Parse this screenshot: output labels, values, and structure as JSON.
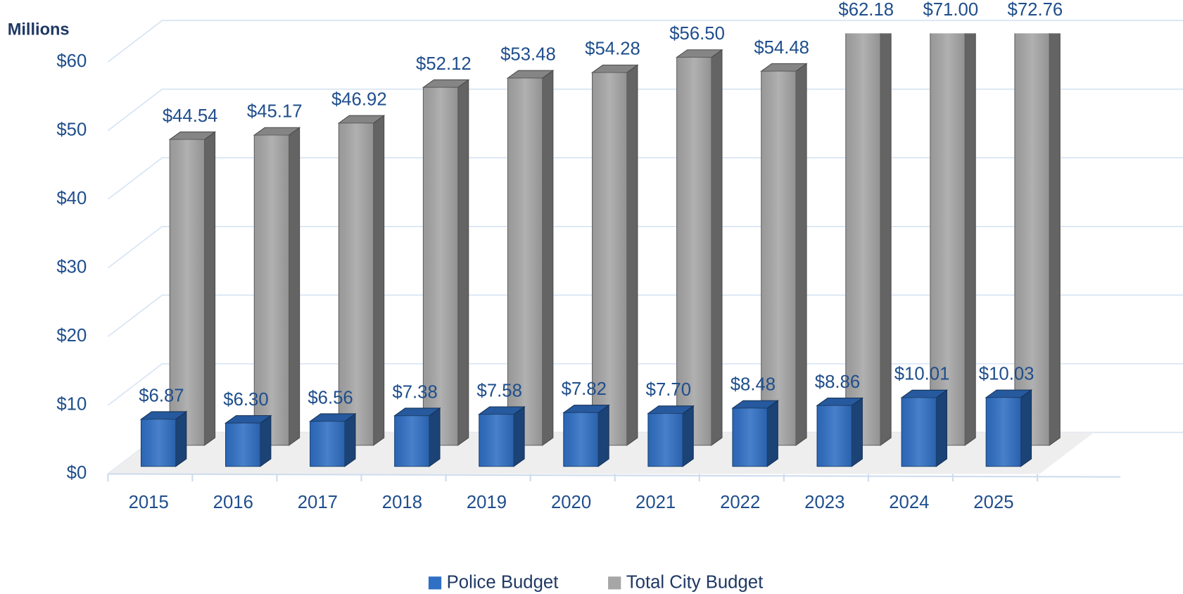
{
  "chart_data": {
    "type": "bar3d",
    "y_axis_title": "Millions",
    "categories": [
      "2015",
      "2016",
      "2017",
      "2018",
      "2019",
      "2020",
      "2021",
      "2022",
      "2023",
      "2024",
      "2025"
    ],
    "series": [
      {
        "name": "Police Budget",
        "color": "#2f6fc4",
        "values": [
          6.87,
          6.3,
          6.56,
          7.38,
          7.58,
          7.82,
          7.7,
          8.48,
          8.86,
          10.01,
          10.03
        ],
        "value_labels": [
          "$6.87",
          "$6.30",
          "$6.56",
          "$7.38",
          "$7.58",
          "$7.82",
          "$7.70",
          "$8.48",
          "$8.86",
          "$10.01",
          "$10.03"
        ]
      },
      {
        "name": "Total City Budget",
        "color": "#a6a6a6",
        "values": [
          44.54,
          45.17,
          46.92,
          52.12,
          53.48,
          54.28,
          56.5,
          54.48,
          62.18,
          71.0,
          72.76
        ],
        "value_labels": [
          "$44.54",
          "$45.17",
          "$46.92",
          "$52.12",
          "$53.48",
          "$54.28",
          "$56.50",
          "$54.48",
          "$62.18",
          "$71.00",
          "$72.76"
        ]
      }
    ],
    "ylim": [
      0,
      60
    ],
    "yticks": [
      {
        "value": 0,
        "label": "$0"
      },
      {
        "value": 10,
        "label": "$10"
      },
      {
        "value": 20,
        "label": "$20"
      },
      {
        "value": 30,
        "label": "$30"
      },
      {
        "value": 40,
        "label": "$40"
      },
      {
        "value": 50,
        "label": "$50"
      },
      {
        "value": 60,
        "label": "$60"
      }
    ],
    "grid": true,
    "legend": "bottom"
  }
}
